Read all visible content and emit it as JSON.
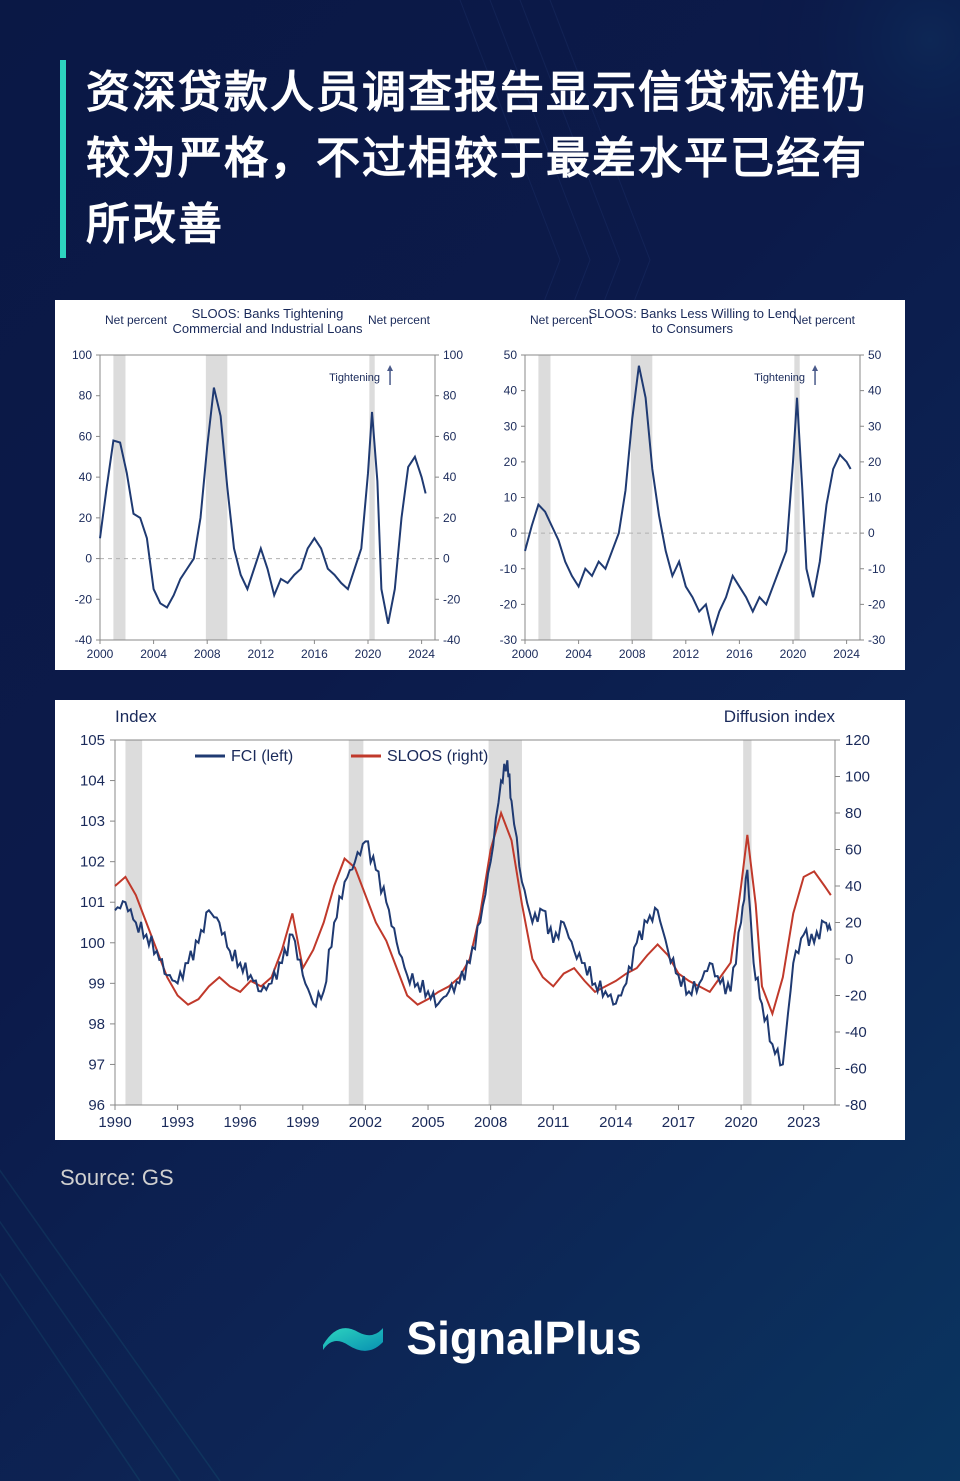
{
  "title": "资深贷款人员调查报告显示信贷标准仍较为严格，不过相较于最差水平已经有所改善",
  "source": "Source: GS",
  "brand": "SignalPlus",
  "colors": {
    "page_bg_top": "#0a1845",
    "page_bg_bottom": "#0a3560",
    "accent": "#2dd4bf",
    "panel_bg": "#ffffff",
    "axis_text": "#1a2a5a",
    "series_blue": "#1f3a72",
    "series_red": "#c0392b",
    "grid": "#d5d5d5",
    "recession_band": "#dcdcdc",
    "zero_line": "#b0b0b0",
    "arrow": "#4a5a8a"
  },
  "chart_top_left": {
    "type": "line",
    "title": "SLOOS: Banks Tightening\nCommercial and Industrial Loans",
    "y_label_left": "Net percent",
    "y_label_right": "Net percent",
    "annotation": "Tightening",
    "xlim": [
      2000,
      2025
    ],
    "ylim": [
      -40,
      100
    ],
    "ytick_step": 20,
    "xticks": [
      2000,
      2004,
      2008,
      2012,
      2016,
      2020,
      2024
    ],
    "line_color": "#1f3a72",
    "line_width": 2,
    "recession_bands": [
      [
        2001,
        2001.9
      ],
      [
        2007.9,
        2009.5
      ],
      [
        2020.1,
        2020.5
      ]
    ],
    "data": [
      [
        2000.0,
        10
      ],
      [
        2000.5,
        35
      ],
      [
        2001.0,
        58
      ],
      [
        2001.5,
        57
      ],
      [
        2002.0,
        42
      ],
      [
        2002.5,
        22
      ],
      [
        2003.0,
        20
      ],
      [
        2003.5,
        10
      ],
      [
        2004.0,
        -15
      ],
      [
        2004.5,
        -22
      ],
      [
        2005.0,
        -24
      ],
      [
        2005.5,
        -18
      ],
      [
        2006.0,
        -10
      ],
      [
        2006.5,
        -5
      ],
      [
        2007.0,
        0
      ],
      [
        2007.5,
        20
      ],
      [
        2008.0,
        55
      ],
      [
        2008.5,
        84
      ],
      [
        2009.0,
        70
      ],
      [
        2009.5,
        35
      ],
      [
        2010.0,
        5
      ],
      [
        2010.5,
        -8
      ],
      [
        2011.0,
        -15
      ],
      [
        2011.5,
        -5
      ],
      [
        2012.0,
        5
      ],
      [
        2012.5,
        -5
      ],
      [
        2013.0,
        -18
      ],
      [
        2013.5,
        -10
      ],
      [
        2014.0,
        -12
      ],
      [
        2014.5,
        -8
      ],
      [
        2015.0,
        -5
      ],
      [
        2015.5,
        5
      ],
      [
        2016.0,
        10
      ],
      [
        2016.5,
        5
      ],
      [
        2017.0,
        -5
      ],
      [
        2017.5,
        -8
      ],
      [
        2018.0,
        -12
      ],
      [
        2018.5,
        -15
      ],
      [
        2019.0,
        -5
      ],
      [
        2019.5,
        5
      ],
      [
        2020.0,
        42
      ],
      [
        2020.3,
        72
      ],
      [
        2020.7,
        38
      ],
      [
        2021.0,
        -15
      ],
      [
        2021.5,
        -32
      ],
      [
        2022.0,
        -15
      ],
      [
        2022.5,
        20
      ],
      [
        2023.0,
        45
      ],
      [
        2023.5,
        50
      ],
      [
        2024.0,
        40
      ],
      [
        2024.3,
        32
      ]
    ]
  },
  "chart_top_right": {
    "type": "line",
    "title": "SLOOS: Banks Less Willing to Lend\nto Consumers",
    "y_label_left": "Net percent",
    "y_label_right": "Net percent",
    "annotation": "Tightening",
    "xlim": [
      2000,
      2025
    ],
    "ylim": [
      -30,
      50
    ],
    "ytick_step": 10,
    "xticks": [
      2000,
      2004,
      2008,
      2012,
      2016,
      2020,
      2024
    ],
    "line_color": "#1f3a72",
    "line_width": 2,
    "recession_bands": [
      [
        2001,
        2001.9
      ],
      [
        2007.9,
        2009.5
      ],
      [
        2020.1,
        2020.5
      ]
    ],
    "data": [
      [
        2000.0,
        -5
      ],
      [
        2000.5,
        2
      ],
      [
        2001.0,
        8
      ],
      [
        2001.5,
        6
      ],
      [
        2002.0,
        2
      ],
      [
        2002.5,
        -2
      ],
      [
        2003.0,
        -8
      ],
      [
        2003.5,
        -12
      ],
      [
        2004.0,
        -15
      ],
      [
        2004.5,
        -10
      ],
      [
        2005.0,
        -12
      ],
      [
        2005.5,
        -8
      ],
      [
        2006.0,
        -10
      ],
      [
        2006.5,
        -5
      ],
      [
        2007.0,
        0
      ],
      [
        2007.5,
        12
      ],
      [
        2008.0,
        32
      ],
      [
        2008.5,
        47
      ],
      [
        2009.0,
        38
      ],
      [
        2009.5,
        18
      ],
      [
        2010.0,
        5
      ],
      [
        2010.5,
        -5
      ],
      [
        2011.0,
        -12
      ],
      [
        2011.5,
        -8
      ],
      [
        2012.0,
        -15
      ],
      [
        2012.5,
        -18
      ],
      [
        2013.0,
        -22
      ],
      [
        2013.5,
        -20
      ],
      [
        2014.0,
        -28
      ],
      [
        2014.5,
        -22
      ],
      [
        2015.0,
        -18
      ],
      [
        2015.5,
        -12
      ],
      [
        2016.0,
        -15
      ],
      [
        2016.5,
        -18
      ],
      [
        2017.0,
        -22
      ],
      [
        2017.5,
        -18
      ],
      [
        2018.0,
        -20
      ],
      [
        2018.5,
        -15
      ],
      [
        2019.0,
        -10
      ],
      [
        2019.5,
        -5
      ],
      [
        2020.0,
        20
      ],
      [
        2020.3,
        38
      ],
      [
        2020.7,
        12
      ],
      [
        2021.0,
        -10
      ],
      [
        2021.5,
        -18
      ],
      [
        2022.0,
        -8
      ],
      [
        2022.5,
        8
      ],
      [
        2023.0,
        18
      ],
      [
        2023.5,
        22
      ],
      [
        2024.0,
        20
      ],
      [
        2024.3,
        18
      ]
    ]
  },
  "chart_bottom": {
    "type": "line",
    "y_label_left": "Index",
    "y_label_right": "Diffusion  index",
    "legend": [
      {
        "label": "FCI (left)",
        "color": "#1f3a72"
      },
      {
        "label": "SLOOS (right)",
        "color": "#c0392b"
      }
    ],
    "xlim": [
      1990,
      2024.5
    ],
    "ylim_left": [
      96,
      105
    ],
    "ytick_step_left": 1,
    "ylim_right": [
      -80,
      120
    ],
    "ytick_step_right": 20,
    "xticks": [
      1990,
      1993,
      1996,
      1999,
      2002,
      2005,
      2008,
      2011,
      2014,
      2017,
      2020,
      2023
    ],
    "line_width": 2,
    "recession_bands": [
      [
        1990.5,
        1991.3
      ],
      [
        2001.2,
        2001.9
      ],
      [
        2007.9,
        2009.5
      ],
      [
        2020.1,
        2020.5
      ]
    ],
    "fci": [
      [
        1990.0,
        100.8
      ],
      [
        1990.5,
        101.0
      ],
      [
        1991.0,
        100.5
      ],
      [
        1991.5,
        100.2
      ],
      [
        1992.0,
        99.8
      ],
      [
        1992.5,
        99.2
      ],
      [
        1993.0,
        99.0
      ],
      [
        1993.5,
        99.5
      ],
      [
        1994.0,
        100.0
      ],
      [
        1994.5,
        100.8
      ],
      [
        1995.0,
        100.5
      ],
      [
        1995.5,
        99.8
      ],
      [
        1996.0,
        99.5
      ],
      [
        1996.5,
        99.2
      ],
      [
        1997.0,
        98.8
      ],
      [
        1997.5,
        99.0
      ],
      [
        1998.0,
        99.5
      ],
      [
        1998.5,
        100.2
      ],
      [
        1999.0,
        99.2
      ],
      [
        1999.5,
        98.5
      ],
      [
        2000.0,
        98.8
      ],
      [
        2000.5,
        100.5
      ],
      [
        2001.0,
        101.5
      ],
      [
        2001.5,
        102.0
      ],
      [
        2002.0,
        102.5
      ],
      [
        2002.5,
        101.8
      ],
      [
        2003.0,
        101.0
      ],
      [
        2003.5,
        100.0
      ],
      [
        2004.0,
        99.2
      ],
      [
        2004.5,
        99.0
      ],
      [
        2005.0,
        98.8
      ],
      [
        2005.5,
        98.5
      ],
      [
        2006.0,
        98.8
      ],
      [
        2006.5,
        99.0
      ],
      [
        2007.0,
        99.5
      ],
      [
        2007.5,
        100.5
      ],
      [
        2008.0,
        102.0
      ],
      [
        2008.5,
        104.0
      ],
      [
        2008.8,
        104.5
      ],
      [
        2009.0,
        103.5
      ],
      [
        2009.5,
        101.5
      ],
      [
        2010.0,
        100.5
      ],
      [
        2010.5,
        100.8
      ],
      [
        2011.0,
        100.0
      ],
      [
        2011.5,
        100.5
      ],
      [
        2012.0,
        99.8
      ],
      [
        2012.5,
        99.5
      ],
      [
        2013.0,
        99.0
      ],
      [
        2013.5,
        98.8
      ],
      [
        2014.0,
        98.5
      ],
      [
        2014.5,
        99.0
      ],
      [
        2015.0,
        100.0
      ],
      [
        2015.5,
        100.5
      ],
      [
        2016.0,
        100.8
      ],
      [
        2016.5,
        99.8
      ],
      [
        2017.0,
        99.2
      ],
      [
        2017.5,
        98.8
      ],
      [
        2018.0,
        99.0
      ],
      [
        2018.5,
        99.5
      ],
      [
        2019.0,
        99.0
      ],
      [
        2019.5,
        98.8
      ],
      [
        2020.0,
        100.5
      ],
      [
        2020.3,
        101.8
      ],
      [
        2020.6,
        99.5
      ],
      [
        2021.0,
        98.5
      ],
      [
        2021.5,
        97.5
      ],
      [
        2022.0,
        97.0
      ],
      [
        2022.5,
        99.5
      ],
      [
        2023.0,
        100.2
      ],
      [
        2023.5,
        100.0
      ],
      [
        2024.0,
        100.5
      ],
      [
        2024.3,
        100.3
      ]
    ],
    "sloos": [
      [
        1990.0,
        40
      ],
      [
        1990.5,
        45
      ],
      [
        1991.0,
        35
      ],
      [
        1991.5,
        20
      ],
      [
        1992.0,
        5
      ],
      [
        1992.5,
        -10
      ],
      [
        1993.0,
        -20
      ],
      [
        1993.5,
        -25
      ],
      [
        1994.0,
        -22
      ],
      [
        1994.5,
        -15
      ],
      [
        1995.0,
        -10
      ],
      [
        1995.5,
        -15
      ],
      [
        1996.0,
        -18
      ],
      [
        1996.5,
        -12
      ],
      [
        1997.0,
        -15
      ],
      [
        1997.5,
        -10
      ],
      [
        1998.0,
        5
      ],
      [
        1998.5,
        25
      ],
      [
        1999.0,
        -5
      ],
      [
        1999.5,
        5
      ],
      [
        2000.0,
        20
      ],
      [
        2000.5,
        40
      ],
      [
        2001.0,
        55
      ],
      [
        2001.5,
        50
      ],
      [
        2002.0,
        35
      ],
      [
        2002.5,
        20
      ],
      [
        2003.0,
        10
      ],
      [
        2003.5,
        -5
      ],
      [
        2004.0,
        -20
      ],
      [
        2004.5,
        -25
      ],
      [
        2005.0,
        -22
      ],
      [
        2005.5,
        -18
      ],
      [
        2006.0,
        -15
      ],
      [
        2006.5,
        -10
      ],
      [
        2007.0,
        0
      ],
      [
        2007.5,
        25
      ],
      [
        2008.0,
        60
      ],
      [
        2008.5,
        80
      ],
      [
        2009.0,
        65
      ],
      [
        2009.5,
        30
      ],
      [
        2010.0,
        0
      ],
      [
        2010.5,
        -10
      ],
      [
        2011.0,
        -15
      ],
      [
        2011.5,
        -8
      ],
      [
        2012.0,
        -5
      ],
      [
        2012.5,
        -12
      ],
      [
        2013.0,
        -18
      ],
      [
        2013.5,
        -15
      ],
      [
        2014.0,
        -12
      ],
      [
        2014.5,
        -8
      ],
      [
        2015.0,
        -5
      ],
      [
        2015.5,
        2
      ],
      [
        2016.0,
        8
      ],
      [
        2016.5,
        2
      ],
      [
        2017.0,
        -8
      ],
      [
        2017.5,
        -12
      ],
      [
        2018.0,
        -15
      ],
      [
        2018.5,
        -18
      ],
      [
        2019.0,
        -10
      ],
      [
        2019.5,
        -2
      ],
      [
        2020.0,
        40
      ],
      [
        2020.3,
        68
      ],
      [
        2020.7,
        30
      ],
      [
        2021.0,
        -15
      ],
      [
        2021.5,
        -30
      ],
      [
        2022.0,
        -10
      ],
      [
        2022.5,
        25
      ],
      [
        2023.0,
        45
      ],
      [
        2023.5,
        48
      ],
      [
        2024.0,
        40
      ],
      [
        2024.3,
        35
      ]
    ]
  }
}
